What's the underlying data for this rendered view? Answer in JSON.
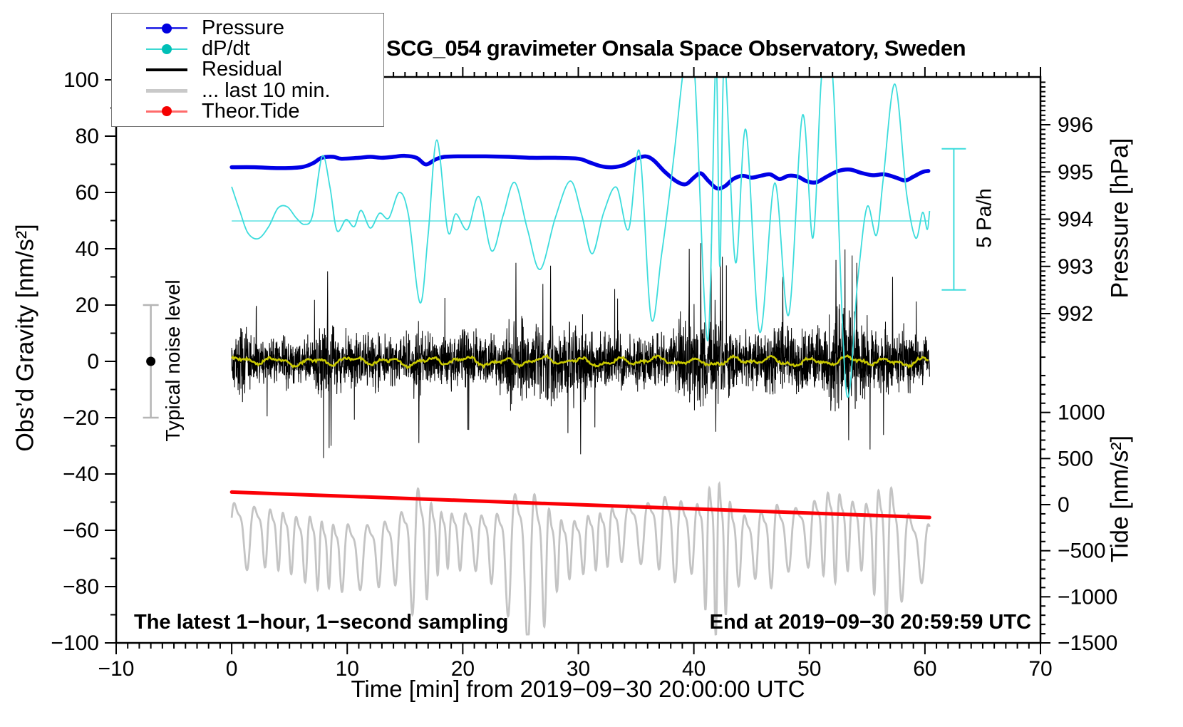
{
  "title": "SCG_054 gravimeter Onsala Space Observatory, Sweden",
  "annotations": {
    "bottom_left": "The latest 1−hour, 1−second sampling",
    "bottom_right": "End at 2019−09−30 20:59:59 UTC",
    "noise_bar_label": "Typical noise level",
    "scale_bar_label": "5 Pa/h"
  },
  "axes": {
    "x": {
      "title": "Time [min] from 2019−09−30 20:00:00 UTC",
      "min": -10,
      "max": 70,
      "major_ticks": [
        -10,
        0,
        10,
        20,
        30,
        40,
        50,
        60,
        70
      ],
      "minor_step": 1
    },
    "gravity": {
      "title": "Obs’d Gravity [nm/s²]",
      "min": -100,
      "max": 101,
      "major_ticks": [
        100,
        80,
        60,
        40,
        20,
        0,
        -20,
        -40,
        -60,
        -80,
        -100
      ],
      "minor_step": 10
    },
    "pressure": {
      "title": "Pressure [hPa]",
      "major_ticks": [
        996,
        995,
        994,
        993,
        992
      ],
      "minor_step": 0.1
    },
    "tide": {
      "title": "Tide [nm/s²]",
      "major_ticks": [
        1000,
        500,
        0,
        -500,
        -1000,
        -1500
      ],
      "minor_step": 100
    }
  },
  "legend": {
    "items": [
      {
        "label": "Pressure",
        "line_color": "#3a3ae8",
        "dot_color": "#0000e0",
        "thickness": 2.5,
        "dot": true
      },
      {
        "label": "dP/dt",
        "line_color": "#3cd8d2",
        "dot_color": "#00bfb6",
        "thickness": 2.5,
        "dot": true
      },
      {
        "label": "Residual",
        "line_color": "#000000",
        "dot_color": null,
        "thickness": 4.5,
        "dot": false
      },
      {
        "label": "... last 10 min.",
        "line_color": "#c9c9c9",
        "dot_color": null,
        "thickness": 5,
        "dot": false
      },
      {
        "label": "Theor.Tide",
        "line_color": "#ff6b6b",
        "dot_color": "#f50000",
        "thickness": 2.5,
        "dot": true
      }
    ]
  },
  "chart_data": {
    "type": "line",
    "x_units": "minutes from 2019-09-30 20:00:00 UTC",
    "x_range": [
      -10,
      70
    ],
    "gravity_axis_range_nms2": [
      -100,
      101
    ],
    "colors": {
      "pressure": "#0000e6",
      "dpdt": "#3cdcdc",
      "residual": "#000000",
      "residual_smooth": "#c8c800",
      "last10min": "#c4c4c4",
      "tide": "#fb0006"
    },
    "pressure_hpa": {
      "note": "blue curve, right pressure axis [hPa]",
      "points": [
        [
          0,
          995.1
        ],
        [
          2,
          995.1
        ],
        [
          4,
          995.08
        ],
        [
          6,
          995.1
        ],
        [
          7,
          995.18
        ],
        [
          7.8,
          995.3
        ],
        [
          8.8,
          995.32
        ],
        [
          9.5,
          995.28
        ],
        [
          11,
          995.3
        ],
        [
          12,
          995.32
        ],
        [
          13,
          995.3
        ],
        [
          14,
          995.32
        ],
        [
          15,
          995.34
        ],
        [
          16,
          995.3
        ],
        [
          16.8,
          995.16
        ],
        [
          17.6,
          995.26
        ],
        [
          18.4,
          995.32
        ],
        [
          20,
          995.33
        ],
        [
          22,
          995.33
        ],
        [
          24,
          995.32
        ],
        [
          26,
          995.3
        ],
        [
          28,
          995.3
        ],
        [
          30,
          995.28
        ],
        [
          31,
          995.2
        ],
        [
          32,
          995.12
        ],
        [
          33,
          995.1
        ],
        [
          34,
          995.15
        ],
        [
          35,
          995.28
        ],
        [
          35.8,
          995.33
        ],
        [
          36.5,
          995.25
        ],
        [
          37.5,
          995.0
        ],
        [
          38.5,
          994.8
        ],
        [
          39.3,
          994.74
        ],
        [
          40,
          994.88
        ],
        [
          40.6,
          994.97
        ],
        [
          41.3,
          994.8
        ],
        [
          42,
          994.65
        ],
        [
          42.7,
          994.7
        ],
        [
          43.4,
          994.85
        ],
        [
          44.2,
          994.92
        ],
        [
          45,
          994.88
        ],
        [
          45.8,
          994.92
        ],
        [
          46.6,
          994.95
        ],
        [
          47.4,
          994.85
        ],
        [
          48.2,
          994.92
        ],
        [
          49,
          994.9
        ],
        [
          49.8,
          994.8
        ],
        [
          50.6,
          994.78
        ],
        [
          51.5,
          994.9
        ],
        [
          52.5,
          995.02
        ],
        [
          53.5,
          995.05
        ],
        [
          54.5,
          994.98
        ],
        [
          55.5,
          994.93
        ],
        [
          56.5,
          994.95
        ],
        [
          57.5,
          994.88
        ],
        [
          58.3,
          994.82
        ],
        [
          59,
          994.9
        ],
        [
          59.8,
          995.0
        ],
        [
          60.3,
          995.02
        ]
      ]
    },
    "dpdt_pa_per_h": {
      "note": "cyan curve, zero line at gravity +50 nm/s2; scale bar = 5 Pa/h; peaks above ~+5.1 clipped at frame",
      "points": [
        [
          0,
          1.2
        ],
        [
          0.7,
          0.35
        ],
        [
          1.4,
          -0.42
        ],
        [
          2.3,
          -0.62
        ],
        [
          3.2,
          -0.2
        ],
        [
          4.0,
          0.45
        ],
        [
          4.8,
          0.5
        ],
        [
          5.6,
          0.1
        ],
        [
          6.3,
          -0.12
        ],
        [
          7.0,
          0.2
        ],
        [
          7.83,
          2.27
        ],
        [
          8.5,
          1.2
        ],
        [
          9.1,
          -0.33
        ],
        [
          9.9,
          0.05
        ],
        [
          10.6,
          -0.2
        ],
        [
          11.2,
          0.37
        ],
        [
          12.0,
          -0.25
        ],
        [
          12.8,
          0.27
        ],
        [
          13.6,
          0.1
        ],
        [
          14.5,
          1.0
        ],
        [
          15.3,
          0.2
        ],
        [
          16.3,
          -2.87
        ],
        [
          17.0,
          -0.5
        ],
        [
          17.75,
          2.84
        ],
        [
          18.7,
          -0.35
        ],
        [
          19.4,
          0.25
        ],
        [
          20.4,
          -0.3
        ],
        [
          21.4,
          0.85
        ],
        [
          22.5,
          -1.05
        ],
        [
          23.5,
          0.2
        ],
        [
          24.5,
          1.35
        ],
        [
          25.6,
          -0.3
        ],
        [
          26.7,
          -1.7
        ],
        [
          28.0,
          0.1
        ],
        [
          29.3,
          1.4
        ],
        [
          30.3,
          0.2
        ],
        [
          31.2,
          -1.15
        ],
        [
          32.2,
          0.3
        ],
        [
          33.3,
          1.18
        ],
        [
          34.35,
          -0.3
        ],
        [
          35.3,
          2.43
        ],
        [
          36.3,
          -3.4
        ],
        [
          37.2,
          -1.2
        ],
        [
          38.2,
          2.0
        ],
        [
          39.0,
          5.0
        ],
        [
          39.5,
          6.2
        ],
        [
          40.1,
          5.0
        ],
        [
          41.2,
          -4.2
        ],
        [
          41.9,
          5.6
        ],
        [
          42.25,
          -1.6
        ],
        [
          42.65,
          5.6
        ],
        [
          43.6,
          -1.45
        ],
        [
          44.5,
          3.2
        ],
        [
          45.7,
          -3.9
        ],
        [
          47.0,
          1.33
        ],
        [
          48.2,
          -3.3
        ],
        [
          49.4,
          3.7
        ],
        [
          50.3,
          -0.6
        ],
        [
          51.0,
          4.8
        ],
        [
          51.5,
          6.2
        ],
        [
          52.1,
          4.5
        ],
        [
          53.2,
          -6.0
        ],
        [
          54.2,
          -2.0
        ],
        [
          55.0,
          0.5
        ],
        [
          55.8,
          -0.5
        ],
        [
          56.4,
          1.5
        ],
        [
          57.4,
          4.8
        ],
        [
          58.4,
          1.0
        ],
        [
          59.2,
          -0.6
        ],
        [
          59.8,
          0.3
        ],
        [
          60.2,
          -0.3
        ],
        [
          60.4,
          0.35
        ]
      ]
    },
    "theoretical_tide_nms2": {
      "note": "red line, right tide axis [nm/s2], nearly linear decline",
      "points": [
        [
          0,
          136
        ],
        [
          60.4,
          -139
        ]
      ]
    },
    "residual_nms2": {
      "note": "black 1-second noise band centred on 0 nm/s2; envelope = approx half-range per minute",
      "center": 0,
      "envelope_per_min": [
        16,
        20,
        14,
        13,
        13,
        14,
        13,
        14,
        22,
        20,
        15,
        14,
        18,
        15,
        14,
        14,
        20,
        16,
        14,
        15,
        18,
        16,
        14,
        15,
        24,
        22,
        16,
        20,
        22,
        18,
        24,
        18,
        15,
        18,
        14,
        15,
        16,
        14,
        16,
        26,
        28,
        26,
        30,
        22,
        16,
        15,
        16,
        18,
        20,
        18,
        22,
        18,
        26,
        28,
        26,
        22,
        18,
        20,
        18,
        15,
        14
      ],
      "spikes": [
        [
          8.3,
          32
        ],
        [
          8.6,
          -30
        ],
        [
          16.2,
          -29
        ],
        [
          24.6,
          35
        ],
        [
          27.6,
          34
        ],
        [
          30.2,
          -33
        ],
        [
          39.6,
          40
        ],
        [
          40.6,
          42
        ],
        [
          41.9,
          -25
        ],
        [
          42.3,
          38
        ],
        [
          47.7,
          30
        ],
        [
          52.3,
          36
        ],
        [
          53.4,
          -28
        ],
        [
          54.1,
          35
        ],
        [
          57.2,
          30
        ]
      ],
      "smooth_line": {
        "color": "#c8c800",
        "center": 0,
        "amplitude": 1.5
      }
    },
    "last10min_nms2": {
      "note": "grey expanded trace of the last 10 minutes, oscillation centred near -62 nm/s2",
      "center": -62,
      "envelope_per_min": [
        13,
        13,
        11,
        11,
        11,
        11,
        11,
        14,
        12,
        12,
        13,
        12,
        12,
        12,
        12,
        16,
        26,
        18,
        11,
        10,
        11,
        10,
        12,
        14,
        22,
        30,
        28,
        24,
        14,
        11,
        10,
        11,
        10,
        11,
        10,
        12,
        11,
        13,
        17,
        14,
        12,
        22,
        30,
        20,
        13,
        11,
        14,
        16,
        12,
        11,
        12,
        14,
        18,
        14,
        12,
        13,
        22,
        26,
        18,
        12,
        11
      ],
      "lower_extreme": -97
    },
    "noise_bar": {
      "x_min": -7,
      "center_nms2": 0,
      "half_range_nms2": 20
    },
    "scale_bar": {
      "pa_per_h": 5,
      "x_min": 62.5,
      "top_pah": 2.53,
      "bottom_pah": -2.42
    },
    "calibration": {
      "pressure_995hpa_at_gravity_nms2": 66.8,
      "tide_0_at_gravity_nms2": -50.9,
      "dpdt_0_at_gravity_nms2": 50
    }
  }
}
